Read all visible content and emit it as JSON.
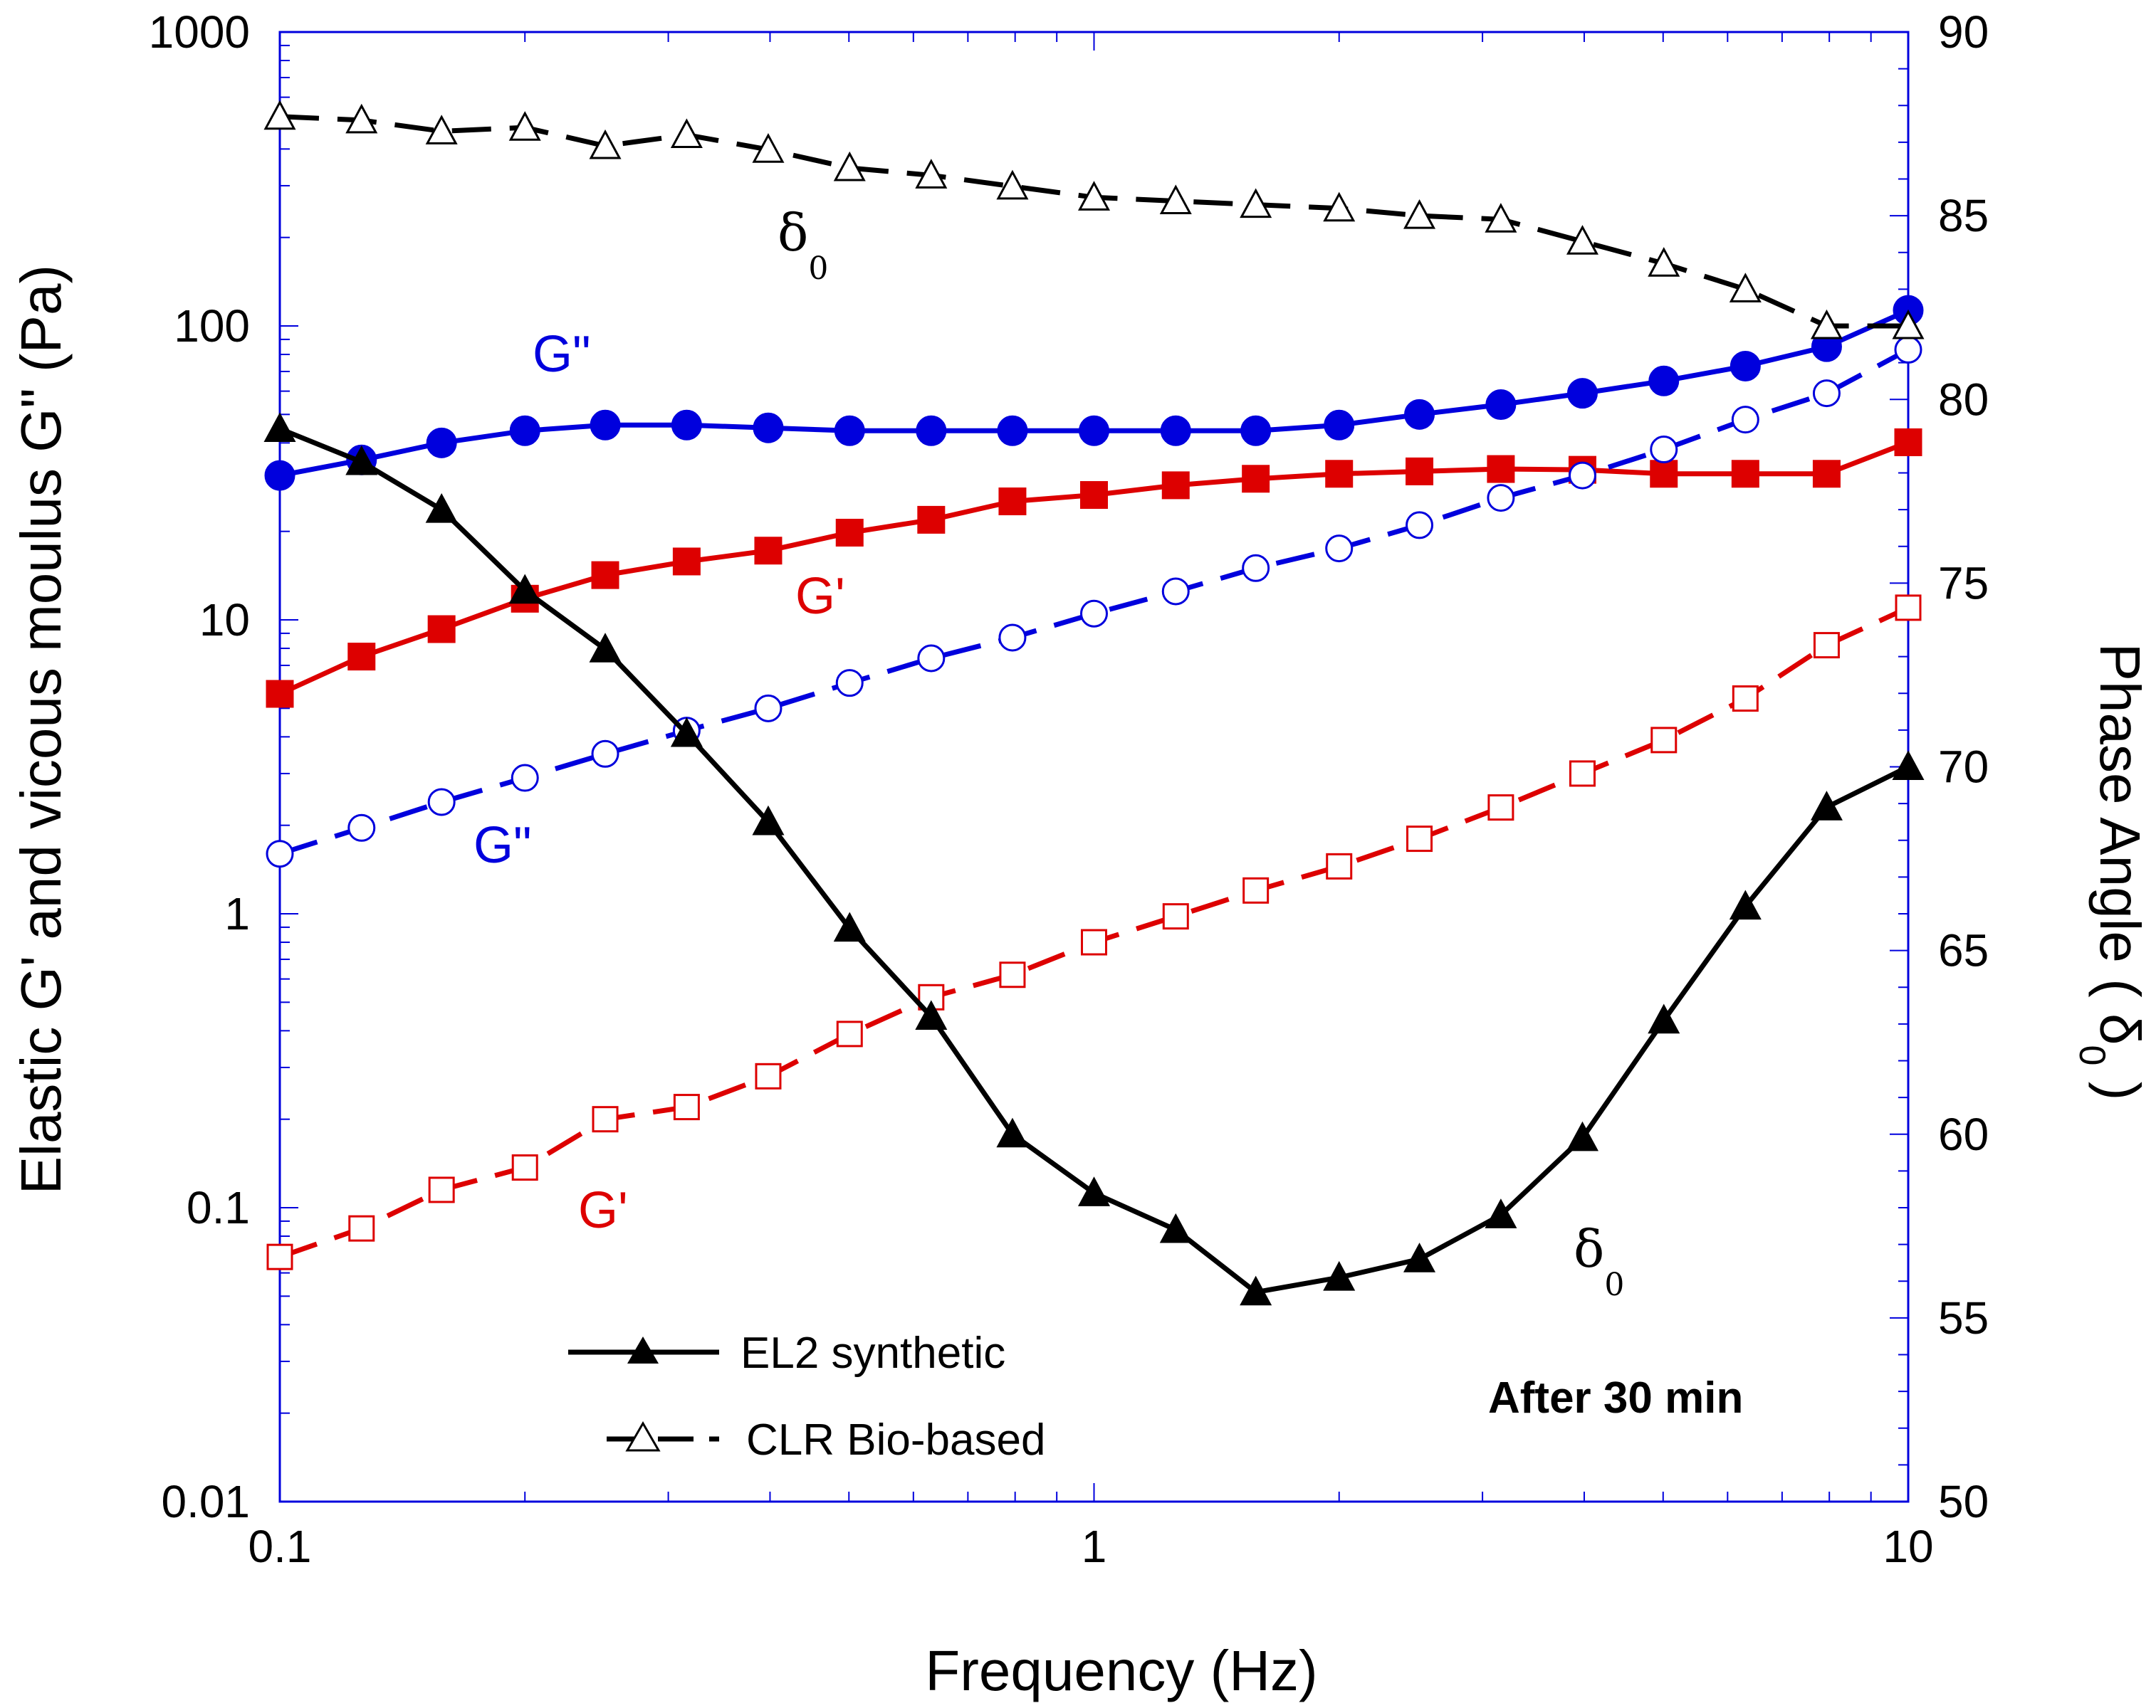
{
  "chart_data": {
    "type": "line",
    "title": "",
    "xlabel": "Frequency (Hz)",
    "ylabel_left": "Elastic G' and vicous moulus G\" (Pa)",
    "ylabel_right": "Phase Angle ( δ",
    "ylabel_right_sub": "0",
    "ylabel_right_close": " )",
    "x_scale": "log",
    "xlim": [
      0.1,
      10
    ],
    "y_left_scale": "log",
    "ylim_left": [
      0.01,
      1000
    ],
    "ylim_right": [
      50,
      90
    ],
    "x_ticks": [
      "0.1",
      "1",
      "10"
    ],
    "y_left_ticks": [
      "0.01",
      "0.1",
      "1",
      "10",
      "100",
      "1000"
    ],
    "y_right_ticks": [
      "50",
      "55",
      "60",
      "65",
      "70",
      "75",
      "80",
      "85",
      "90"
    ],
    "x": [
      0.1,
      0.126,
      0.158,
      0.2,
      0.251,
      0.316,
      0.398,
      0.501,
      0.631,
      0.794,
      1.0,
      1.26,
      1.58,
      2.0,
      2.51,
      3.16,
      3.98,
      5.01,
      6.31,
      7.94,
      10.0
    ],
    "series": [
      {
        "name": "G'' EL2 synthetic",
        "axis": "left",
        "color": "#0000dd",
        "marker": "filled-circle",
        "dash": "solid",
        "values": [
          31,
          35,
          40,
          44,
          46,
          46,
          45,
          44,
          44,
          44,
          44,
          44,
          44,
          46,
          50,
          54,
          59,
          65,
          73,
          85,
          113
        ]
      },
      {
        "name": "G' EL2 synthetic",
        "axis": "left",
        "color": "#dd0000",
        "marker": "filled-square",
        "dash": "solid",
        "values": [
          5.6,
          7.5,
          9.3,
          11.8,
          14.2,
          15.8,
          17.2,
          19.8,
          21.9,
          25.3,
          26.6,
          28.7,
          30.2,
          31.4,
          32.0,
          32.6,
          32.4,
          31.4,
          31.4,
          31.4,
          40.2
        ]
      },
      {
        "name": "G'' CLR Bio-based",
        "axis": "left",
        "color": "#0000dd",
        "marker": "open-circle",
        "dash": "dashed",
        "values": [
          1.6,
          1.96,
          2.4,
          2.9,
          3.5,
          4.2,
          5.0,
          6.1,
          7.4,
          8.7,
          10.5,
          12.5,
          15.0,
          17.5,
          21.0,
          26.0,
          31.0,
          38.0,
          48.0,
          59.0,
          83.0
        ]
      },
      {
        "name": "G' CLR Bio-based",
        "axis": "left",
        "color": "#dd0000",
        "marker": "open-square",
        "dash": "dashed",
        "values": [
          0.068,
          0.085,
          0.115,
          0.137,
          0.2,
          0.22,
          0.28,
          0.39,
          0.52,
          0.62,
          0.8,
          0.98,
          1.2,
          1.45,
          1.8,
          2.3,
          3.0,
          3.9,
          5.4,
          8.2,
          11.0
        ]
      },
      {
        "name": "EL2 synthetic",
        "axis": "right",
        "color": "#000000",
        "marker": "filled-triangle",
        "dash": "solid",
        "values": [
          79.2,
          78.3,
          77.0,
          74.8,
          73.2,
          70.9,
          68.5,
          65.6,
          63.2,
          60.0,
          58.4,
          57.4,
          55.7,
          56.1,
          56.6,
          57.8,
          59.9,
          63.1,
          66.2,
          68.9,
          70.0
        ]
      },
      {
        "name": "CLR Bio-based",
        "axis": "right",
        "color": "#000000",
        "marker": "open-triangle",
        "dash": "dashed",
        "values": [
          87.7,
          87.6,
          87.3,
          87.4,
          86.9,
          87.2,
          86.8,
          86.3,
          86.1,
          85.8,
          85.5,
          85.4,
          85.3,
          85.2,
          85.0,
          84.9,
          84.3,
          83.7,
          83.0,
          82.0,
          82.0
        ]
      }
    ],
    "legend": {
      "position": "bottom-left",
      "entries": [
        "EL2 synthetic",
        "CLR Bio-based"
      ]
    },
    "annotations": {
      "g_double_prime_solid": "G\"",
      "g_prime_solid": "G'",
      "g_double_prime_dashed": "G\"",
      "g_prime_dashed": "G'",
      "delta_symbol": "δ",
      "delta_subscript": "0",
      "note": "After 30 min"
    },
    "colors": {
      "axis": "#0000dd",
      "blue": "#0000dd",
      "red": "#dd0000",
      "black": "#000000"
    }
  }
}
